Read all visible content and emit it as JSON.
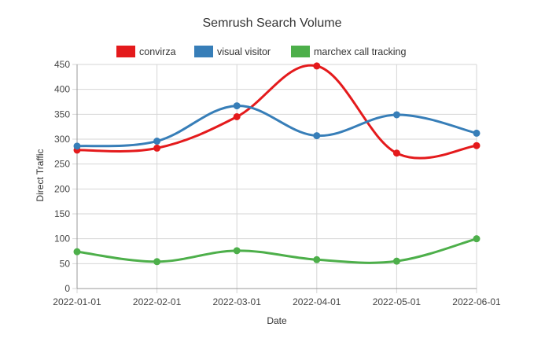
{
  "chart_data": {
    "type": "line",
    "title": "Semrush Search Volume",
    "xlabel": "Date",
    "ylabel": "Direct Traffic",
    "ylim": [
      0,
      450
    ],
    "ytick_step": 50,
    "grid": true,
    "legend_position": "top",
    "categories": [
      "2022-01-01",
      "2022-02-01",
      "2022-03-01",
      "2022-04-01",
      "2022-05-01",
      "2022-06-01"
    ],
    "series": [
      {
        "name": "convirza",
        "color": "#e41a1c",
        "values": [
          278,
          282,
          345,
          447,
          272,
          287
        ]
      },
      {
        "name": "visual visitor",
        "color": "#377eb8",
        "values": [
          286,
          296,
          367,
          307,
          349,
          312
        ]
      },
      {
        "name": "marchex call tracking",
        "color": "#4daf4a",
        "values": [
          74,
          54,
          76,
          58,
          55,
          100
        ]
      }
    ]
  }
}
